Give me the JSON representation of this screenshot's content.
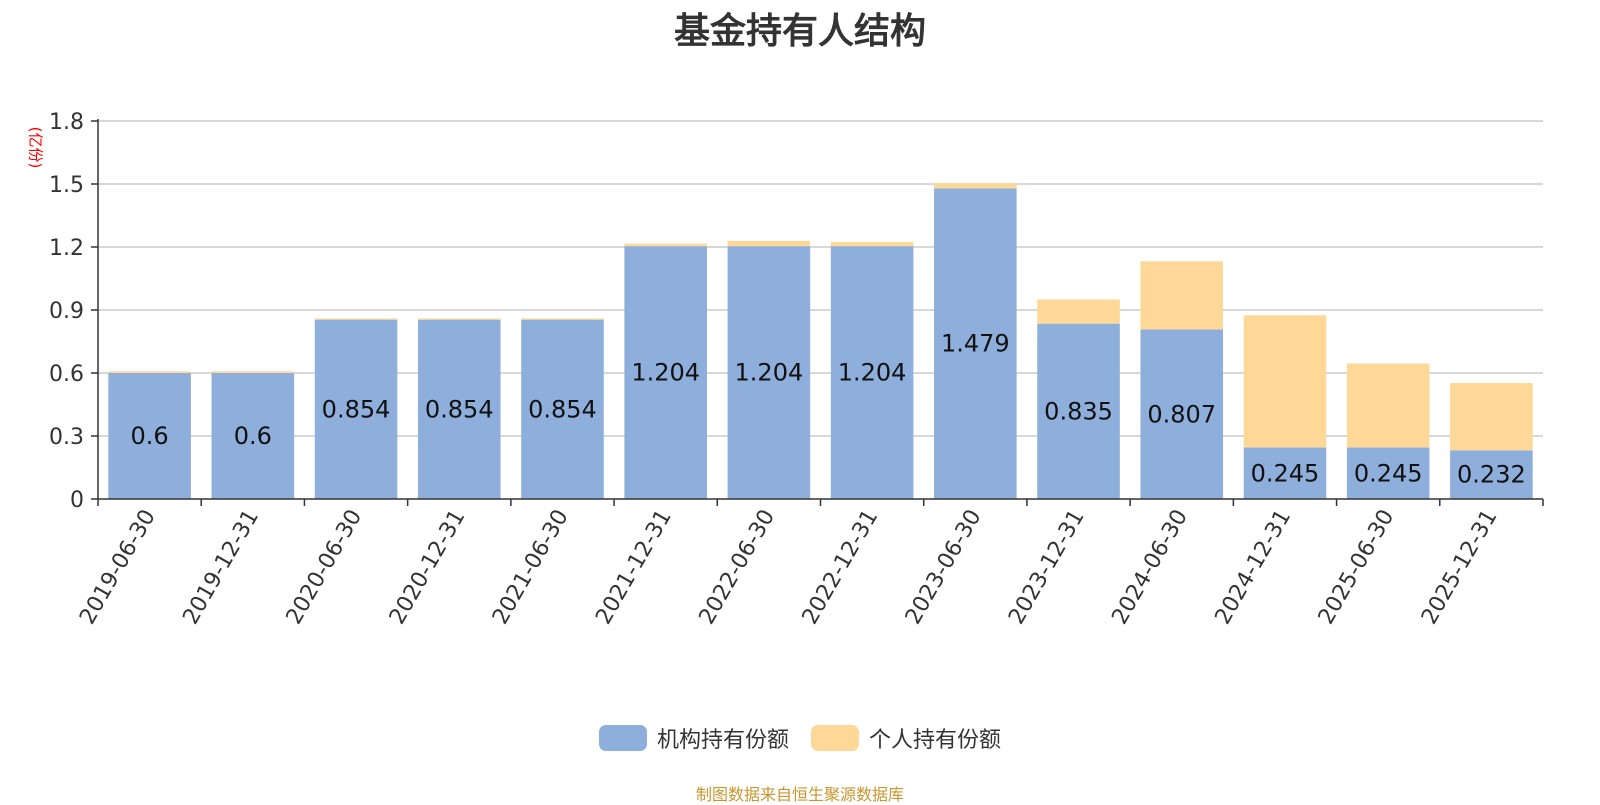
{
  "title": "基金持有人结构",
  "unit_label": "(亿份)",
  "source_note": "制图数据来自恒生聚源数据库",
  "colors": {
    "institutional": "#8eaedb",
    "individual": "#fdd896",
    "axis": "#333333",
    "grid": "#cccccc",
    "unit_text": "#ff0000",
    "source_text": "#c8962e"
  },
  "chart_data": {
    "type": "bar",
    "stacked": true,
    "title": "基金持有人结构",
    "ylabel": "(亿份)",
    "xlabel": "",
    "ylim": [
      0,
      1.8
    ],
    "yticks": [
      "0",
      "0.3",
      "0.6",
      "0.9",
      "1.2",
      "1.5",
      "1.8"
    ],
    "grid": true,
    "legend_position": "bottom",
    "categories": [
      "2019-06-30",
      "2019-12-31",
      "2020-06-30",
      "2020-12-31",
      "2021-06-30",
      "2021-12-31",
      "2022-06-30",
      "2022-12-31",
      "2023-06-30",
      "2023-12-31",
      "2024-06-30",
      "2024-12-31",
      "2025-06-30",
      "2025-12-31"
    ],
    "series": [
      {
        "name": "机构持有份额",
        "values": [
          0.6,
          0.6,
          0.854,
          0.854,
          0.854,
          1.204,
          1.204,
          1.204,
          1.479,
          0.835,
          0.807,
          0.245,
          0.245,
          0.232
        ],
        "labels": [
          "0.6",
          "0.6",
          "0.854",
          "0.854",
          "0.854",
          "1.204",
          "1.204",
          "1.204",
          "1.479",
          "0.835",
          "0.807",
          "0.245",
          "0.245",
          "0.232"
        ]
      },
      {
        "name": "个人持有份额",
        "values": [
          0.008,
          0.008,
          0.006,
          0.006,
          0.006,
          0.012,
          0.025,
          0.02,
          0.025,
          0.115,
          0.325,
          0.63,
          0.4,
          0.32
        ]
      }
    ]
  }
}
